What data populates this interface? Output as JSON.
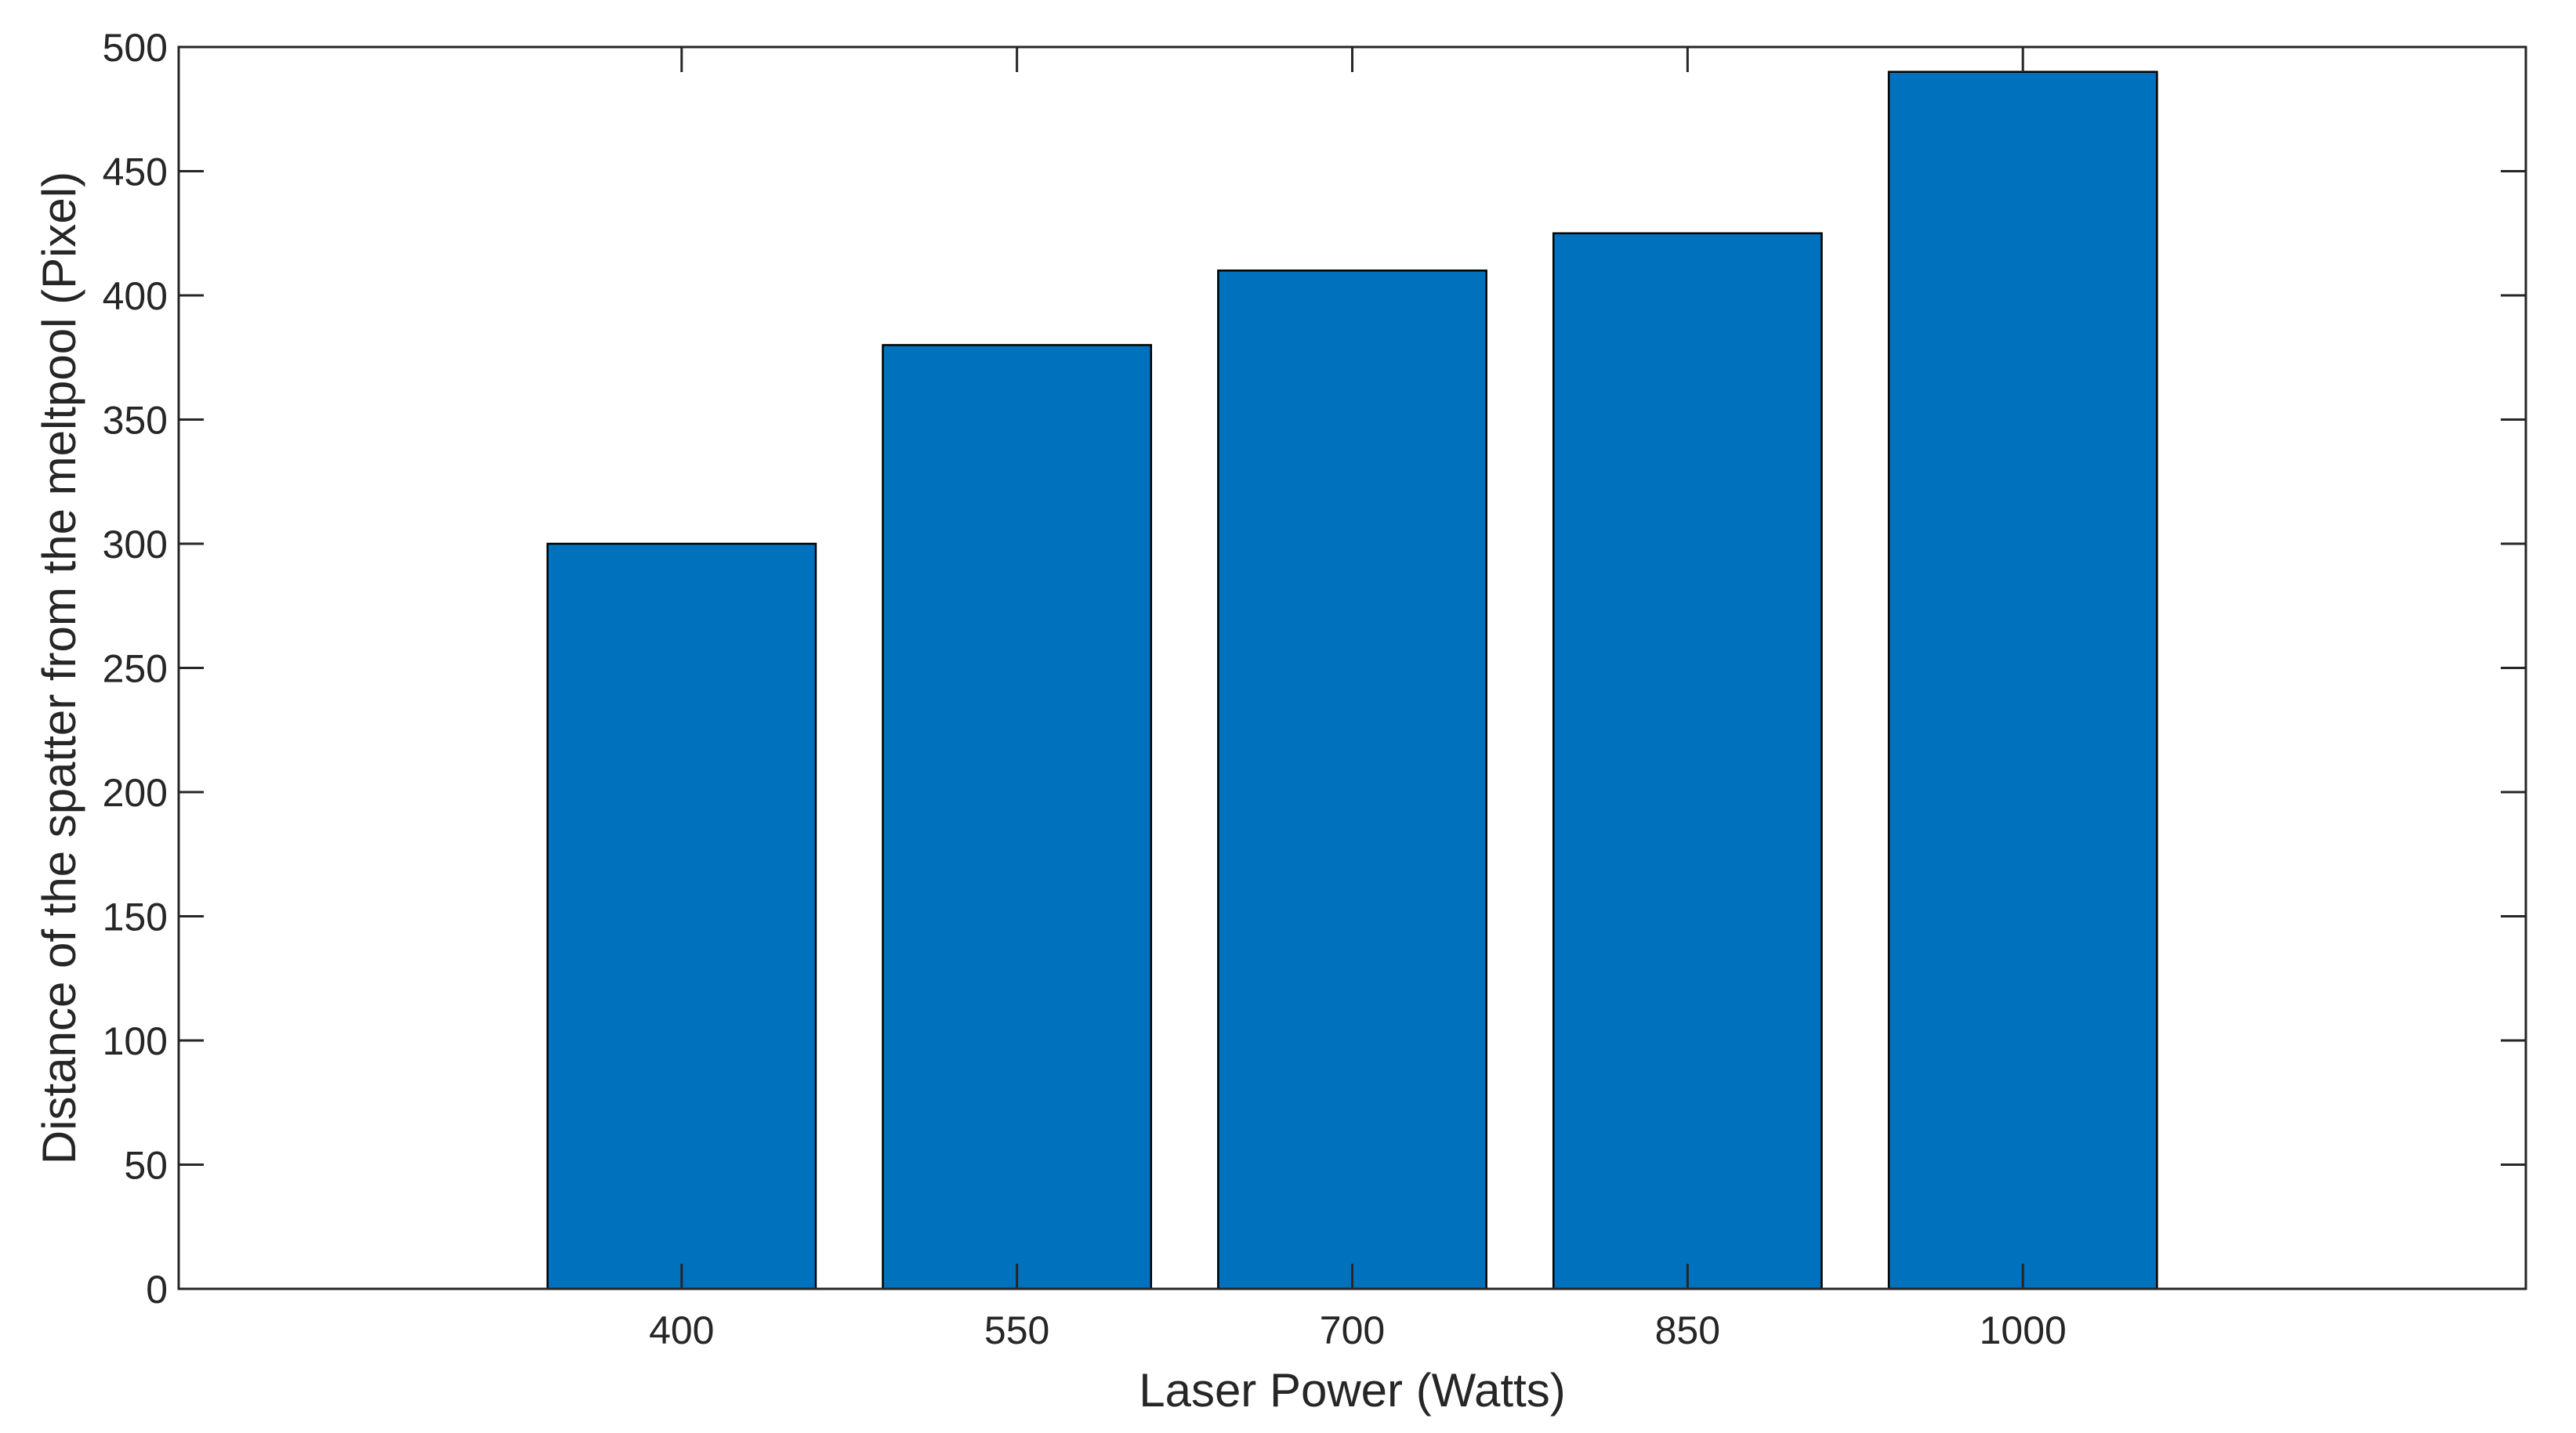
{
  "chart_data": {
    "type": "bar",
    "title": "",
    "xlabel": "Laser Power (Watts)",
    "ylabel": "Distance of the spatter from the meltpool (Pixel)",
    "categories": [
      "400",
      "550",
      "700",
      "850",
      "1000"
    ],
    "values": [
      300,
      380,
      410,
      425,
      490
    ],
    "ylim": [
      0,
      500
    ],
    "yticks": [
      "0",
      "50",
      "100",
      "150",
      "200",
      "250",
      "300",
      "350",
      "400",
      "450",
      "500"
    ],
    "grid": false,
    "legend": "none",
    "colors": {
      "bar_fill": "#0072BD",
      "bar_edge": "#000000",
      "axis": "#262626"
    }
  }
}
